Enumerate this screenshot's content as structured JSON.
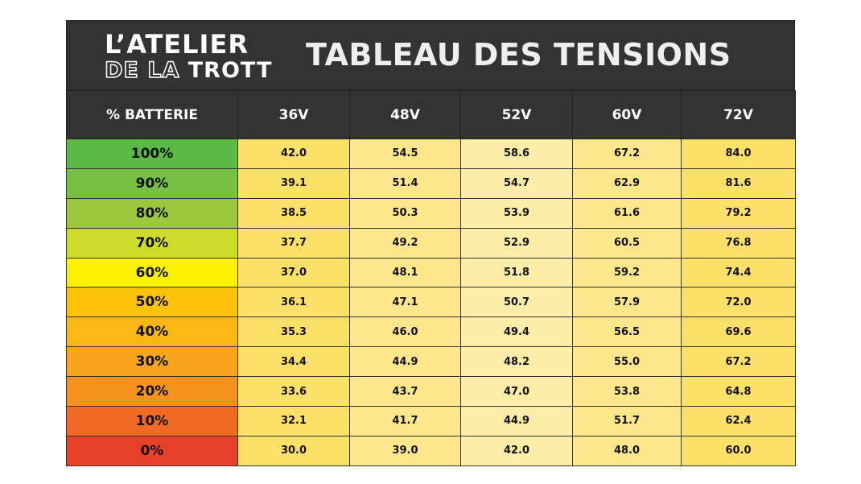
{
  "header": {
    "logo": {
      "line1": "L’ATELIER",
      "line2a": "DE LA",
      "line2b": "TROTT"
    },
    "title": "TABLEAU DES TENSIONS"
  },
  "table": {
    "columns": [
      "% BATTERIE",
      "36V",
      "48V",
      "52V",
      "60V",
      "72V"
    ],
    "rows": [
      {
        "label": "100%",
        "values": [
          "42.0",
          "54.5",
          "58.6",
          "67.2",
          "84.0"
        ]
      },
      {
        "label": "90%",
        "values": [
          "39.1",
          "51.4",
          "54.7",
          "62.9",
          "81.6"
        ]
      },
      {
        "label": "80%",
        "values": [
          "38.5",
          "50.3",
          "53.9",
          "61.6",
          "79.2"
        ]
      },
      {
        "label": "70%",
        "values": [
          "37.7",
          "49.2",
          "52.9",
          "60.5",
          "76.8"
        ]
      },
      {
        "label": "60%",
        "values": [
          "37.0",
          "48.1",
          "51.8",
          "59.2",
          "74.4"
        ]
      },
      {
        "label": "50%",
        "values": [
          "36.1",
          "47.1",
          "50.7",
          "57.9",
          "72.0"
        ]
      },
      {
        "label": "40%",
        "values": [
          "35.3",
          "46.0",
          "49.4",
          "56.5",
          "69.6"
        ]
      },
      {
        "label": "30%",
        "values": [
          "34.4",
          "44.9",
          "48.2",
          "55.0",
          "67.2"
        ]
      },
      {
        "label": "20%",
        "values": [
          "33.6",
          "43.7",
          "47.0",
          "53.8",
          "64.8"
        ]
      },
      {
        "label": "10%",
        "values": [
          "32.1",
          "41.7",
          "44.9",
          "51.7",
          "62.4"
        ]
      },
      {
        "label": "0%",
        "values": [
          "30.0",
          "39.0",
          "42.0",
          "48.0",
          "60.0"
        ]
      }
    ]
  }
}
